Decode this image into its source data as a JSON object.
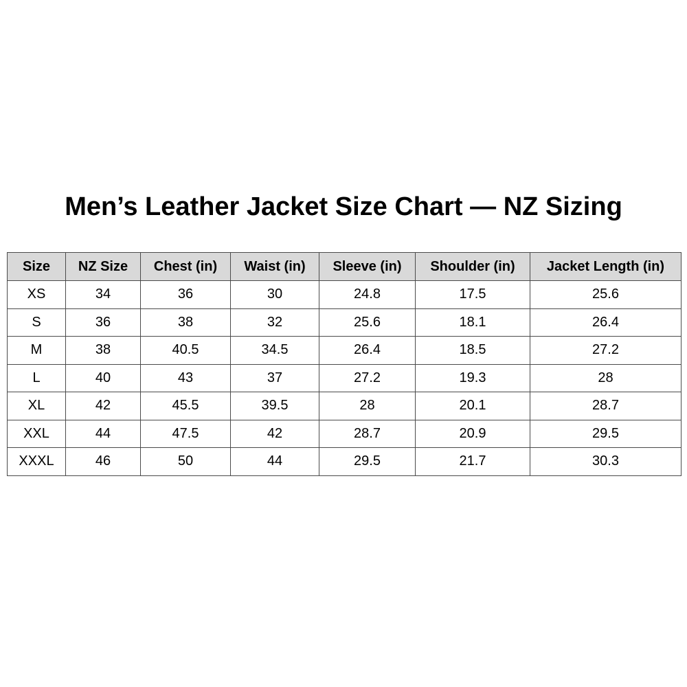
{
  "title": "Men’s Leather Jacket Size Chart — NZ Sizing",
  "table": {
    "headers": [
      "Size",
      "NZ Size",
      "Chest (in)",
      "Waist (in)",
      "Sleeve (in)",
      "Shoulder (in)",
      "Jacket Length (in)"
    ],
    "rows": [
      [
        "XS",
        "34",
        "36",
        "30",
        "24.8",
        "17.5",
        "25.6"
      ],
      [
        "S",
        "36",
        "38",
        "32",
        "25.6",
        "18.1",
        "26.4"
      ],
      [
        "M",
        "38",
        "40.5",
        "34.5",
        "26.4",
        "18.5",
        "27.2"
      ],
      [
        "L",
        "40",
        "43",
        "37",
        "27.2",
        "19.3",
        "28"
      ],
      [
        "XL",
        "42",
        "45.5",
        "39.5",
        "28",
        "20.1",
        "28.7"
      ],
      [
        "XXL",
        "44",
        "47.5",
        "42",
        "28.7",
        "20.9",
        "29.5"
      ],
      [
        "XXXL",
        "46",
        "50",
        "44",
        "29.5",
        "21.7",
        "30.3"
      ]
    ]
  },
  "colors": {
    "header_bg": "#d9d9d9",
    "border": "#4a4a4a"
  }
}
